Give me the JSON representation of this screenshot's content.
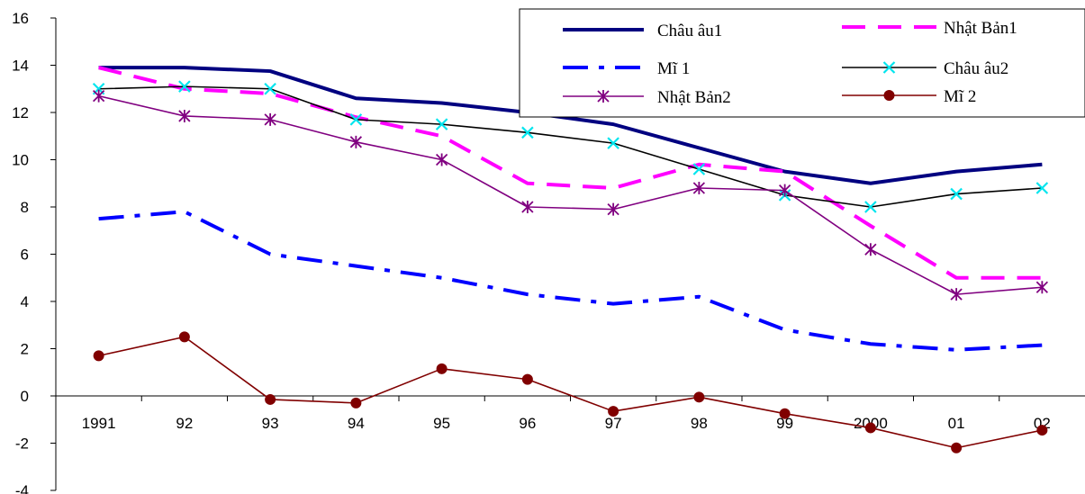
{
  "chart_data": {
    "type": "line",
    "categories": [
      "1991",
      "92",
      "93",
      "94",
      "95",
      "96",
      "97",
      "98",
      "99",
      "2000",
      "01",
      "02"
    ],
    "ylim": [
      -4,
      16
    ],
    "yticks": [
      "16",
      "14",
      "12",
      "10",
      "8",
      "6",
      "4",
      "2",
      "0",
      "-2",
      "-4"
    ],
    "grid": false,
    "legend_position": "top-right",
    "series": [
      {
        "name": "Châu âu1",
        "color": "#000080",
        "style": "solid-thick",
        "marker": "none",
        "values": [
          13.9,
          13.9,
          13.75,
          12.6,
          12.4,
          12.0,
          11.5,
          10.5,
          9.5,
          9.0,
          9.5,
          9.8
        ]
      },
      {
        "name": "Nhật Bản1",
        "color": "#FF00FF",
        "style": "dashed",
        "marker": "none",
        "values": [
          13.9,
          13.0,
          12.8,
          11.8,
          11.0,
          9.0,
          8.8,
          9.8,
          9.5,
          7.2,
          5.0,
          5.0
        ]
      },
      {
        "name": "Mĩ 1",
        "color": "#0000FF",
        "style": "dash-dot",
        "marker": "none",
        "values": [
          7.5,
          7.8,
          6.0,
          5.5,
          5.0,
          4.3,
          3.9,
          4.2,
          2.8,
          2.2,
          1.95,
          2.15
        ]
      },
      {
        "name": "Châu âu2",
        "color": "#000000",
        "style": "solid-thin",
        "marker": "cross-cyan",
        "values": [
          13.0,
          13.1,
          13.0,
          11.7,
          11.5,
          11.15,
          10.7,
          9.6,
          8.5,
          8.0,
          8.55,
          8.8
        ]
      },
      {
        "name": "Nhật Bản2",
        "color": "#800080",
        "style": "solid-thin",
        "marker": "star",
        "values": [
          12.7,
          11.85,
          11.7,
          10.75,
          10.0,
          8.0,
          7.9,
          8.8,
          8.7,
          6.2,
          4.3,
          4.6
        ]
      },
      {
        "name": "Mĩ 2",
        "color": "#800000",
        "style": "solid-thin",
        "marker": "circle",
        "values": [
          1.7,
          2.5,
          -0.15,
          -0.3,
          1.15,
          0.7,
          -0.65,
          -0.05,
          -0.75,
          -1.35,
          -2.2,
          -1.45
        ]
      }
    ]
  }
}
